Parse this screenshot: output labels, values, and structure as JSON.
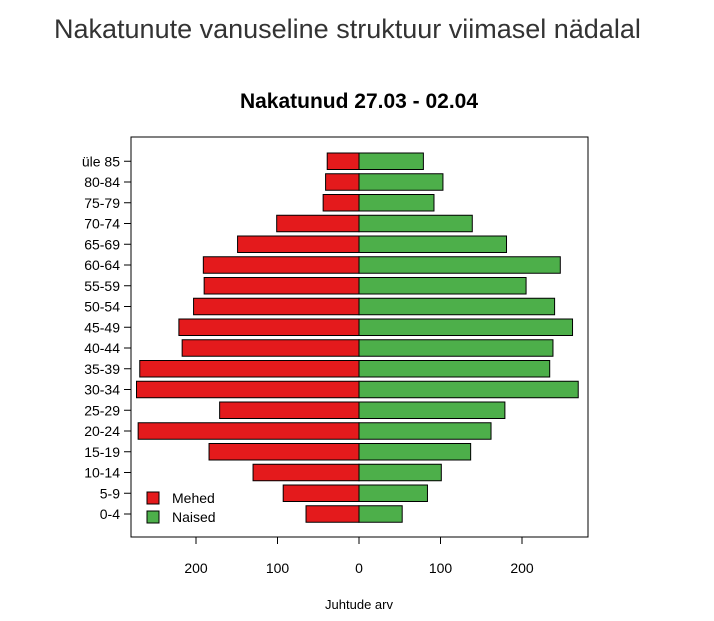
{
  "page": {
    "heading": "Nakatunute vanuseline struktuur viimasel nädalal"
  },
  "colors": {
    "male": "#e41a1c",
    "female": "#4daf4a",
    "heading_text": "#333333"
  },
  "chart_data": {
    "type": "bar",
    "orientation": "horizontal",
    "title": "Nakatunud 27.03 - 02.04",
    "xlabel": "Juhtude arv",
    "ylabel": "",
    "categories": [
      "0-4",
      "5-9",
      "10-14",
      "15-19",
      "20-24",
      "25-29",
      "30-34",
      "35-39",
      "40-44",
      "45-49",
      "50-54",
      "55-59",
      "60-64",
      "65-69",
      "70-74",
      "75-79",
      "80-84",
      "üle 85"
    ],
    "series": [
      {
        "name": "Mehed",
        "side": "left",
        "color": "#e41a1c",
        "values": [
          65,
          93,
          130,
          184,
          271,
          171,
          273,
          269,
          217,
          221,
          203,
          190,
          191,
          149,
          101,
          44,
          41,
          39
        ]
      },
      {
        "name": "Naised",
        "side": "right",
        "color": "#4daf4a",
        "values": [
          53,
          84,
          101,
          137,
          162,
          179,
          269,
          234,
          238,
          262,
          240,
          205,
          247,
          181,
          139,
          92,
          103,
          79
        ]
      }
    ],
    "xlim": [
      -280,
      280
    ],
    "xticks": [
      -200,
      -100,
      0,
      100,
      200
    ],
    "xtick_labels": [
      "200",
      "100",
      "0",
      "100",
      "200"
    ],
    "legend": {
      "position": "bottom-left",
      "entries": [
        "Mehed",
        "Naised"
      ]
    },
    "grid": false
  }
}
